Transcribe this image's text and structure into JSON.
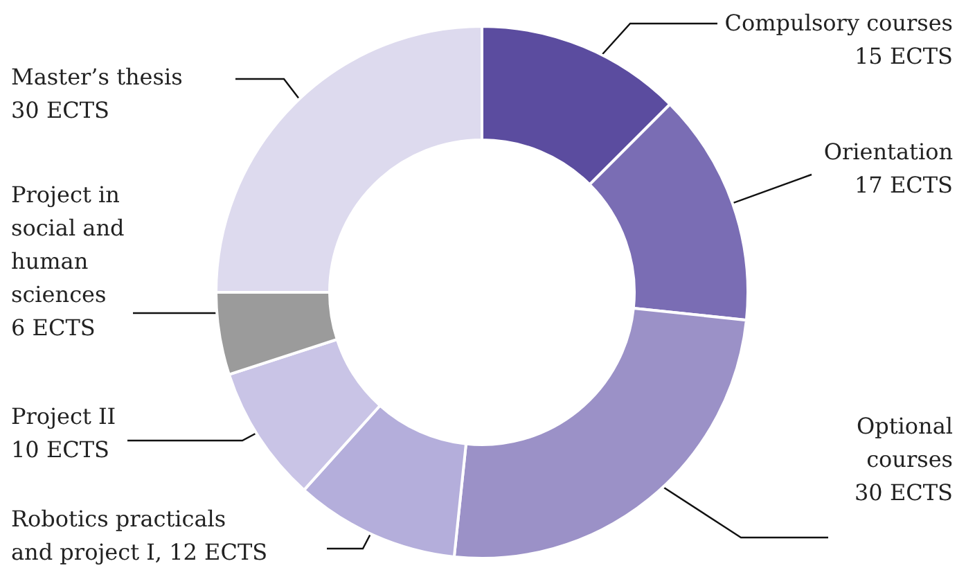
{
  "chart_data": {
    "type": "donut",
    "categories": [
      "Compulsory courses",
      "Orientation",
      "Optional courses",
      "Robotics practicals and project I",
      "Project II",
      "Project in social and human sciences",
      "Master’s thesis"
    ],
    "values": [
      15,
      17,
      30,
      12,
      10,
      6,
      30
    ],
    "value_labels": [
      "15 ECTS",
      "17 ECTS",
      "30 ECTS",
      "12 ECTS",
      "10 ECTS",
      "6 ECTS",
      "30 ECTS"
    ],
    "colors": [
      "#5b4c9f",
      "#7a6db4",
      "#9b91c7",
      "#b4aedb",
      "#c9c4e6",
      "#9b9b9b",
      "#dddaee"
    ]
  }
}
